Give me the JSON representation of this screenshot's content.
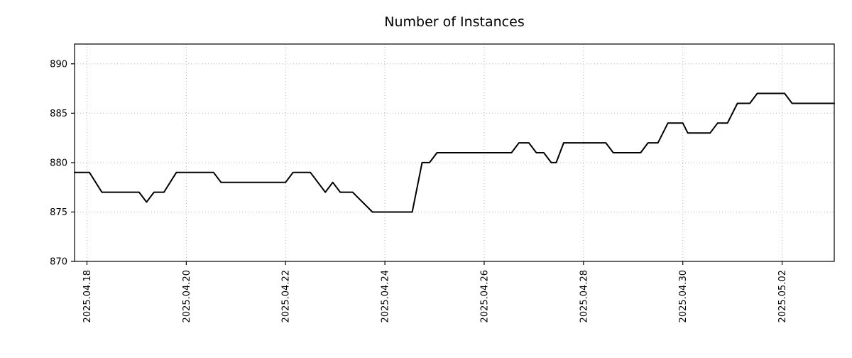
{
  "chart_data": {
    "type": "line",
    "title": "Number of Instances",
    "xlabel": "",
    "ylabel": "",
    "grid": true,
    "legend": "none",
    "line_color": "#000000",
    "grid_color": "#b0b0b0",
    "axis_color": "#000000",
    "x_ticks": [
      {
        "label": "2025.04.18",
        "day": 0
      },
      {
        "label": "2025.04.20",
        "day": 2
      },
      {
        "label": "2025.04.22",
        "day": 4
      },
      {
        "label": "2025.04.24",
        "day": 6
      },
      {
        "label": "2025.04.26",
        "day": 8
      },
      {
        "label": "2025.04.28",
        "day": 10
      },
      {
        "label": "2025.04.30",
        "day": 12
      },
      {
        "label": "2025.05.02",
        "day": 14
      }
    ],
    "y_ticks": [
      870,
      875,
      880,
      885,
      890
    ],
    "xlim_days": [
      -0.25,
      15.05
    ],
    "ylim": [
      870,
      892
    ],
    "series": [
      {
        "name": "Number of Instances",
        "points_note": "x = days since 2025-04-18, y = instance count",
        "points": [
          [
            -0.25,
            879
          ],
          [
            0.05,
            879
          ],
          [
            0.3,
            877
          ],
          [
            1.05,
            877
          ],
          [
            1.2,
            876
          ],
          [
            1.35,
            877
          ],
          [
            1.55,
            877
          ],
          [
            1.8,
            879
          ],
          [
            2.55,
            879
          ],
          [
            2.7,
            878
          ],
          [
            4.0,
            878
          ],
          [
            4.15,
            879
          ],
          [
            4.5,
            879
          ],
          [
            4.65,
            878
          ],
          [
            4.8,
            877
          ],
          [
            4.95,
            878
          ],
          [
            5.1,
            877
          ],
          [
            5.35,
            877
          ],
          [
            5.75,
            875
          ],
          [
            6.55,
            875
          ],
          [
            6.75,
            880
          ],
          [
            6.9,
            880
          ],
          [
            7.05,
            881
          ],
          [
            8.55,
            881
          ],
          [
            8.7,
            882
          ],
          [
            8.9,
            882
          ],
          [
            9.05,
            881
          ],
          [
            9.2,
            881
          ],
          [
            9.35,
            880
          ],
          [
            9.45,
            880
          ],
          [
            9.6,
            882
          ],
          [
            10.45,
            882
          ],
          [
            10.6,
            881
          ],
          [
            11.15,
            881
          ],
          [
            11.3,
            882
          ],
          [
            11.5,
            882
          ],
          [
            11.7,
            884
          ],
          [
            12.0,
            884
          ],
          [
            12.1,
            883
          ],
          [
            12.55,
            883
          ],
          [
            12.7,
            884
          ],
          [
            12.9,
            884
          ],
          [
            13.1,
            886
          ],
          [
            13.35,
            886
          ],
          [
            13.5,
            887
          ],
          [
            14.05,
            887
          ],
          [
            14.2,
            886
          ],
          [
            15.05,
            886
          ]
        ]
      }
    ]
  }
}
